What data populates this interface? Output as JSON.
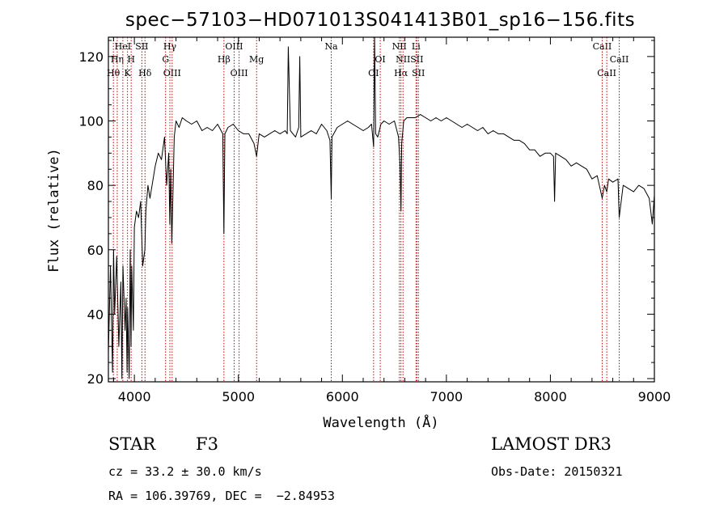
{
  "chart_data": {
    "type": "line",
    "title": "spec−57103−HD071013S041413B01_sp16−156.fits",
    "xlabel": "Wavelength (Å)",
    "ylabel": "Flux (relative)",
    "xlim": [
      3750,
      9000
    ],
    "ylim": [
      19,
      126
    ],
    "x_ticks": [
      4000,
      5000,
      6000,
      7000,
      8000,
      9000
    ],
    "y_ticks": [
      20,
      40,
      60,
      80,
      100,
      120
    ],
    "series": [
      {
        "name": "spectrum",
        "x": [
          3750,
          3770,
          3790,
          3800,
          3810,
          3830,
          3850,
          3870,
          3880,
          3890,
          3910,
          3920,
          3930,
          3935,
          3950,
          3960,
          3968,
          3975,
          3990,
          4000,
          4020,
          4040,
          4060,
          4080,
          4101,
          4110,
          4130,
          4150,
          4180,
          4200,
          4230,
          4260,
          4290,
          4310,
          4330,
          4340,
          4350,
          4360,
          4383,
          4400,
          4430,
          4460,
          4500,
          4550,
          4600,
          4650,
          4700,
          4750,
          4800,
          4850,
          4861,
          4870,
          4900,
          4950,
          5000,
          5050,
          5100,
          5150,
          5175,
          5200,
          5250,
          5300,
          5350,
          5400,
          5450,
          5470,
          5480,
          5500,
          5550,
          5580,
          5590,
          5600,
          5650,
          5700,
          5750,
          5800,
          5850,
          5880,
          5893,
          5900,
          5950,
          6000,
          6050,
          6100,
          6150,
          6200,
          6250,
          6280,
          6300,
          6310,
          6320,
          6340,
          6370,
          6400,
          6450,
          6500,
          6540,
          6555,
          6563,
          6570,
          6590,
          6620,
          6650,
          6700,
          6750,
          6800,
          6850,
          6900,
          6950,
          7000,
          7050,
          7100,
          7150,
          7200,
          7250,
          7300,
          7350,
          7400,
          7450,
          7500,
          7550,
          7600,
          7650,
          7700,
          7750,
          7800,
          7850,
          7900,
          7950,
          8000,
          8030,
          8040,
          8050,
          8100,
          8150,
          8200,
          8250,
          8300,
          8350,
          8400,
          8450,
          8498,
          8520,
          8542,
          8560,
          8600,
          8650,
          8662,
          8700,
          8750,
          8800,
          8850,
          8900,
          8950,
          8980,
          9000
        ],
        "values": [
          28,
          55,
          22,
          60,
          40,
          58,
          30,
          50,
          20,
          55,
          35,
          45,
          22,
          42,
          20,
          60,
          30,
          55,
          35,
          67,
          72,
          70,
          75,
          55,
          60,
          72,
          80,
          76,
          82,
          86,
          90,
          88,
          95,
          80,
          90,
          68,
          85,
          62,
          95,
          100,
          98,
          101,
          100,
          99,
          100,
          97,
          98,
          97,
          99,
          96,
          65,
          96,
          98,
          99,
          97,
          96,
          96,
          93,
          89,
          96,
          95,
          96,
          97,
          96,
          97,
          96,
          123,
          97,
          95,
          98,
          120,
          95,
          96,
          97,
          96,
          99,
          97,
          94,
          76,
          95,
          98,
          99,
          100,
          99,
          98,
          97,
          98,
          99,
          92,
          127,
          96,
          95,
          99,
          100,
          99,
          100,
          95,
          86,
          72,
          93,
          100,
          101,
          101,
          101,
          102,
          101,
          100,
          101,
          100,
          101,
          100,
          99,
          98,
          99,
          98,
          97,
          98,
          96,
          97,
          96,
          96,
          95,
          94,
          94,
          93,
          91,
          91,
          89,
          90,
          90,
          89,
          75,
          90,
          89,
          88,
          86,
          87,
          86,
          85,
          82,
          83,
          76,
          80,
          78,
          82,
          81,
          82,
          70,
          80,
          79,
          78,
          80,
          79,
          76,
          68,
          77
        ]
      }
    ],
    "lines": [
      {
        "wavelength": 3798,
        "label": "Hθ",
        "row": 3
      },
      {
        "wavelength": 3835,
        "label": "Hη",
        "row": 2
      },
      {
        "wavelength": 3889,
        "label": "HeI",
        "row": 1
      },
      {
        "wavelength": 3934,
        "label": "K",
        "row": 3
      },
      {
        "wavelength": 3969,
        "label": "H",
        "row": 2
      },
      {
        "wavelength": 4072,
        "label": "SII",
        "row": 1
      },
      {
        "wavelength": 4102,
        "label": "Hδ",
        "row": 3
      },
      {
        "wavelength": 4300,
        "label": "G",
        "row": 2
      },
      {
        "wavelength": 4341,
        "label": "Hγ",
        "row": 1
      },
      {
        "wavelength": 4363,
        "label": "OIII",
        "row": 3
      },
      {
        "wavelength": 4861,
        "label": "Hβ",
        "row": 2
      },
      {
        "wavelength": 4959,
        "label": "OIII",
        "row": 1
      },
      {
        "wavelength": 5007,
        "label": "OIII",
        "row": 3
      },
      {
        "wavelength": 5175,
        "label": "Mg",
        "row": 2
      },
      {
        "wavelength": 5893,
        "label": "Na",
        "row": 1
      },
      {
        "wavelength": 6300,
        "label": "OI",
        "row": 3
      },
      {
        "wavelength": 6364,
        "label": "OI",
        "row": 2
      },
      {
        "wavelength": 6548,
        "label": "NII",
        "row": 1
      },
      {
        "wavelength": 6563,
        "label": "Hα",
        "row": 3
      },
      {
        "wavelength": 6583,
        "label": "NII",
        "row": 2
      },
      {
        "wavelength": 6708,
        "label": "Li",
        "row": 1
      },
      {
        "wavelength": 6716,
        "label": "SII",
        "row": 2
      },
      {
        "wavelength": 6731,
        "label": "SII",
        "row": 3
      },
      {
        "wavelength": 8498,
        "label": "CaII",
        "row": 1
      },
      {
        "wavelength": 8542,
        "label": "CaII",
        "row": 3
      },
      {
        "wavelength": 8662,
        "label": "CaII",
        "row": 2
      }
    ],
    "colors": {
      "spectrum": "#000000",
      "lines": "#cc0000"
    }
  },
  "info": {
    "class": "STAR",
    "subclass": "F3",
    "survey": "LAMOST DR3",
    "cz": "cz = 33.2 ± 30.0 km/s",
    "obs_date": "Obs-Date: 20150321",
    "coords": "RA = 106.39769, DEC =  −2.84953"
  }
}
